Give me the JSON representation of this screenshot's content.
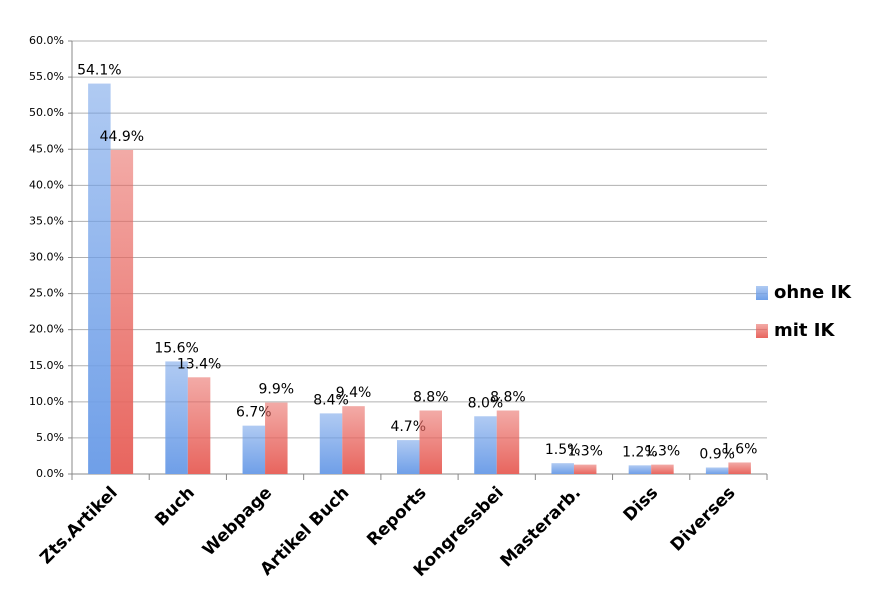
{
  "chart_data": {
    "type": "bar",
    "categories": [
      "Zts.Artikel",
      "Buch",
      "Webpage",
      "Artikel Buch",
      "Reports",
      "Kongressbei",
      "Masterarb.",
      "Diss",
      "Diverses"
    ],
    "series": [
      {
        "name": "ohne IK",
        "color": "#6f9fe8",
        "values": [
          54.1,
          15.6,
          6.7,
          8.4,
          4.7,
          8.0,
          1.5,
          1.2,
          0.9
        ],
        "value_labels": [
          "54.1%",
          "15.6%",
          "6.7%",
          "8.4%",
          "4.7%",
          "8.0%",
          "1.5%",
          "1.2%",
          "0.9%"
        ]
      },
      {
        "name": "mit IK",
        "color": "#e8655e",
        "values": [
          44.9,
          13.4,
          9.9,
          9.4,
          8.8,
          8.8,
          1.3,
          1.3,
          1.6
        ],
        "value_labels": [
          "44.9%",
          "13.4%",
          "9.9%",
          "9.4%",
          "8.8%",
          "8.8%",
          "1.3%",
          "1.3%",
          "1.6%"
        ]
      }
    ],
    "ylim": [
      0,
      60
    ],
    "yticks": [
      {
        "value": 0,
        "label": "0.0%"
      },
      {
        "value": 5,
        "label": "5.0%"
      },
      {
        "value": 10,
        "label": "10.0%"
      },
      {
        "value": 15,
        "label": "15.0%"
      },
      {
        "value": 20,
        "label": "20.0%"
      },
      {
        "value": 25,
        "label": "25.0%"
      },
      {
        "value": 30,
        "label": "30.0%"
      },
      {
        "value": 35,
        "label": "35.0%"
      },
      {
        "value": 40,
        "label": "40.0%"
      },
      {
        "value": 45,
        "label": "45.0%"
      },
      {
        "value": 50,
        "label": "50.0%"
      },
      {
        "value": 55,
        "label": "55.0%"
      },
      {
        "value": 60,
        "label": "60.0%"
      }
    ],
    "grid": true,
    "legend": "right"
  }
}
